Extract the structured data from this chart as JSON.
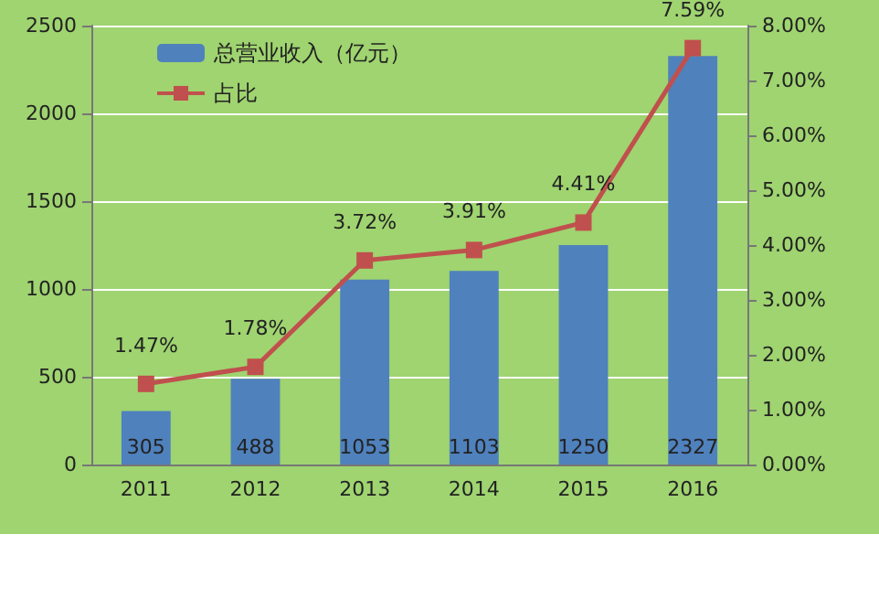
{
  "chart_data": {
    "type": "bar",
    "categories": [
      "2011",
      "2012",
      "2013",
      "2014",
      "2015",
      "2016"
    ],
    "series": [
      {
        "name": "总营业收入（亿元）",
        "color": "#4f81bd",
        "values": [
          305,
          488,
          1053,
          1103,
          1250,
          2327
        ]
      },
      {
        "name": "占比",
        "type": "line",
        "axis": "y2",
        "color": "#c0504d",
        "values": [
          1.47,
          1.78,
          3.72,
          3.91,
          4.41,
          7.59
        ],
        "value_labels": [
          "1.47%",
          "1.78%",
          "3.72%",
          "3.91%",
          "4.41%",
          "7.59%"
        ]
      }
    ],
    "ylim": [
      0,
      2500
    ],
    "yticks": [
      0,
      500,
      1000,
      1500,
      2000,
      2500
    ],
    "y2lim": [
      0,
      8
    ],
    "y2ticks": [
      {
        "value": 0,
        "label": "0.00%"
      },
      {
        "value": 1,
        "label": "1.00%"
      },
      {
        "value": 2,
        "label": "2.00%"
      },
      {
        "value": 3,
        "label": "3.00%"
      },
      {
        "value": 4,
        "label": "4.00%"
      },
      {
        "value": 5,
        "label": "5.00%"
      },
      {
        "value": 6,
        "label": "6.00%"
      },
      {
        "value": 7,
        "label": "7.00%"
      },
      {
        "value": 8,
        "label": "8.00%"
      }
    ],
    "grid": "y",
    "legend": "top left",
    "marker": "square",
    "line_style": "solid",
    "data_labels": true
  }
}
